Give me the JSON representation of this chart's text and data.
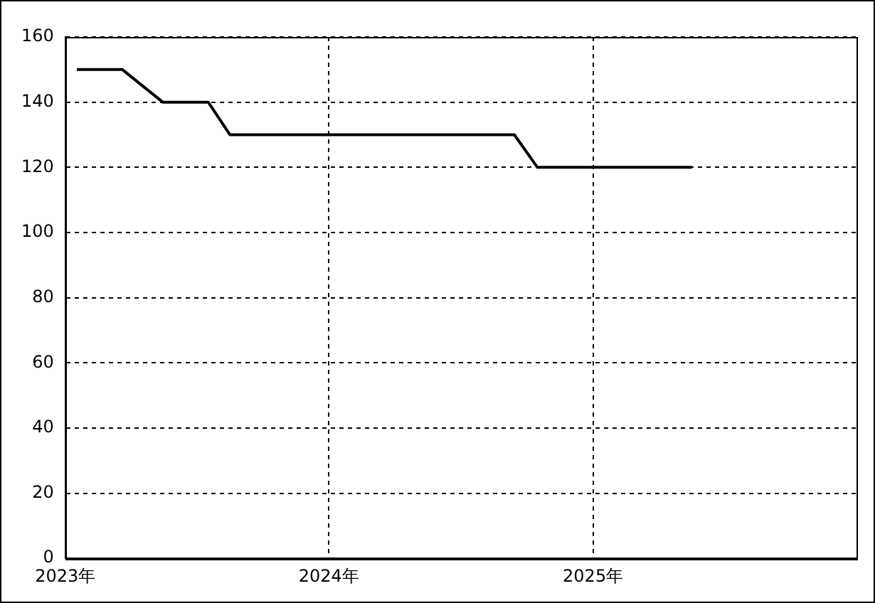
{
  "chart_data": {
    "type": "line",
    "x": [
      "2023-01-17",
      "2023-03-21",
      "2023-05-16",
      "2023-07-18",
      "2023-08-17",
      "2024-09-14",
      "2024-10-16",
      "2025-05-18"
    ],
    "series": [
      {
        "color": "#000000",
        "values": [
          150,
          150,
          140,
          140,
          130,
          130,
          120,
          120
        ]
      }
    ],
    "xlim": [
      "2023",
      "2026"
    ],
    "xticks": [
      {
        "value": "2023",
        "label": "2023年"
      },
      {
        "value": "2024",
        "label": "2024年"
      },
      {
        "value": "2025",
        "label": "2025年"
      }
    ],
    "ylim": [
      0,
      160
    ],
    "yticks": [
      0,
      20,
      40,
      60,
      80,
      100,
      120,
      140,
      160
    ],
    "grid": true,
    "legend": false,
    "marker": "none",
    "line_style": "solid"
  }
}
